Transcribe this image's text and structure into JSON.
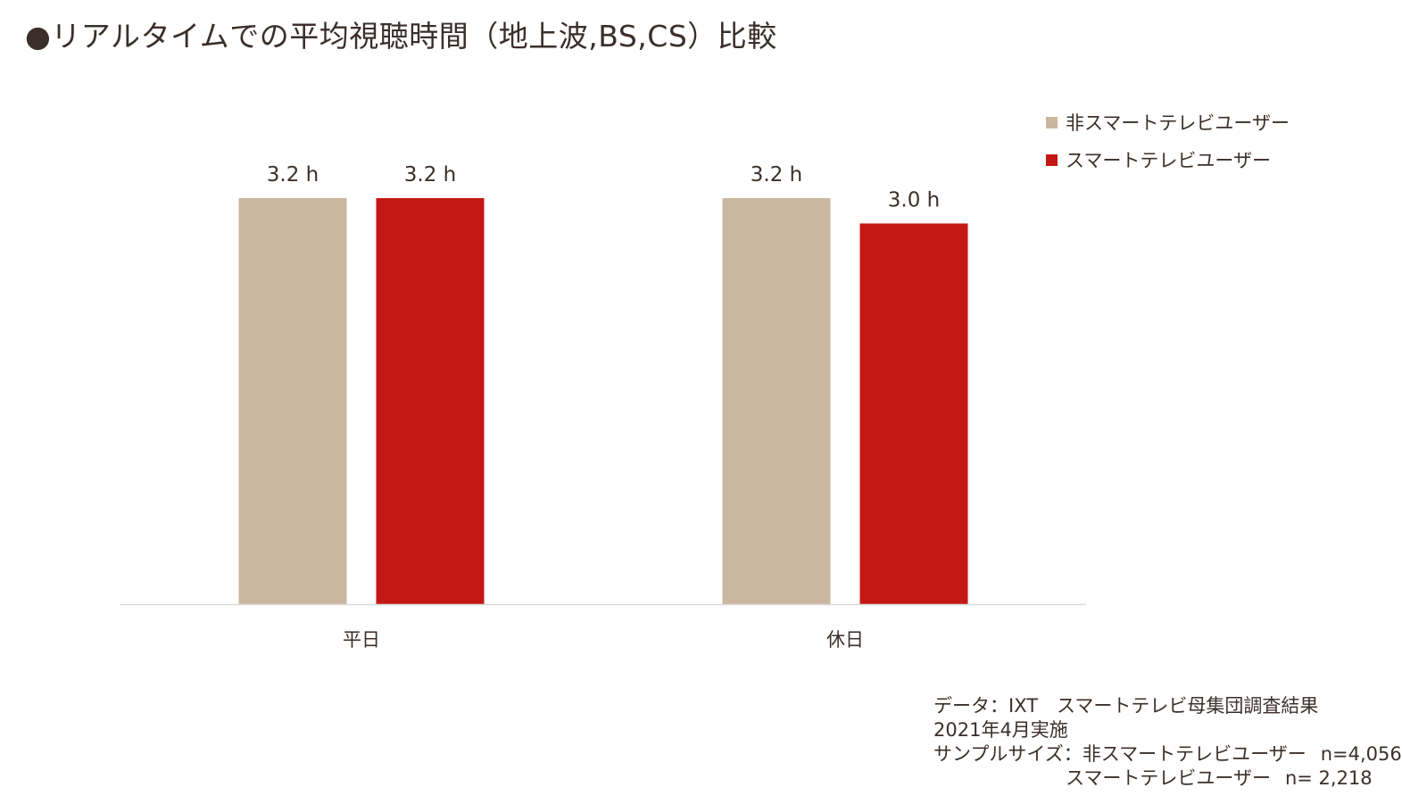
{
  "title": "●リアルタイムでの平均視聴時間（地上波,BS,CS）比較",
  "legend": {
    "items": [
      {
        "label": "非スマートテレビユーザー",
        "color": "#cbb6a0"
      },
      {
        "label": "スマートテレビユーザー",
        "color": "#c41815"
      }
    ]
  },
  "chart_data": {
    "type": "bar",
    "categories": [
      "平日",
      "休日"
    ],
    "series": [
      {
        "name": "非スマートテレビユーザー",
        "color": "#cbb6a0",
        "values": [
          3.2,
          3.2
        ],
        "labels": [
          "3.2 h",
          "3.2 h"
        ]
      },
      {
        "name": "スマートテレビユーザー",
        "color": "#c41815",
        "values": [
          3.2,
          3.0
        ],
        "labels": [
          "3.2 h",
          "3.0 h"
        ]
      }
    ],
    "ylim": [
      0,
      3.2
    ],
    "grid": false,
    "legend_position": "top-right"
  },
  "footnote": {
    "line1": "データ：IXT　スマートテレビ母集団調査結果",
    "line2": "2021年4月実施",
    "line3_prefix": "サンプルサイズ：非スマートテレビユーザー",
    "line3_n": "n=4,056",
    "line4_label": "スマートテレビユーザー",
    "line4_n": "n= 2,218"
  }
}
